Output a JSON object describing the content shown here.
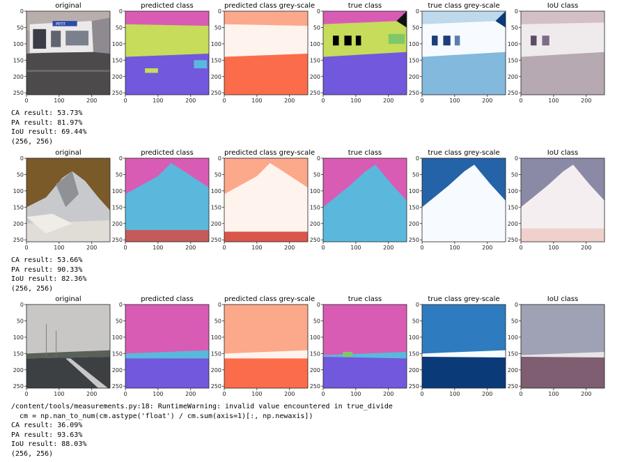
{
  "panel_titles": [
    "original",
    "predicted class",
    "predicted class grey-scale",
    "true class",
    "true class grey-scale",
    "IoU class"
  ],
  "x_ticks": [
    "0",
    "100",
    "200"
  ],
  "y_ticks": [
    "0",
    "50",
    "100",
    "150",
    "200",
    "250"
  ],
  "rows": [
    {
      "scene": "building",
      "logo_text": "PETIT",
      "output": [
        "CA result: 53.73%",
        "PA result: 81.97%",
        "IoU result: 69.44%",
        "(256, 256)"
      ]
    },
    {
      "scene": "mountain",
      "output": [
        "CA result: 53.66%",
        "PA result: 90.33%",
        "IoU result: 82.36%",
        "(256, 256)"
      ]
    },
    {
      "scene": "road",
      "warning": [
        "/content/tools/measurements.py:18: RuntimeWarning: invalid value encountered in true_divide",
        "  cm = np.nan_to_num(cm.astype('float') / cm.sum(axis=1)[:, np.newaxis])"
      ],
      "output": [
        "CA result: 36.09%",
        "PA result: 93.63%",
        "IoU result: 88.03%",
        "(256, 256)"
      ]
    }
  ],
  "colors": {
    "sky": "#d85cb4",
    "building": "#c6dc5a",
    "road": "#7258dc",
    "mountain": "#5ab8dc",
    "window": "#000000",
    "grey_light": "#fff3ed",
    "grey_mid": "#fca88a",
    "grey_dark": "#fb6c4a",
    "blue_light": "#f7fbff",
    "blue_mid": "#82b9dc",
    "blue_dark": "#0b3a78",
    "iou_a": "#d4c0c4",
    "iou_b": "#a99aa6",
    "iou_c": "#8a5c6e"
  }
}
